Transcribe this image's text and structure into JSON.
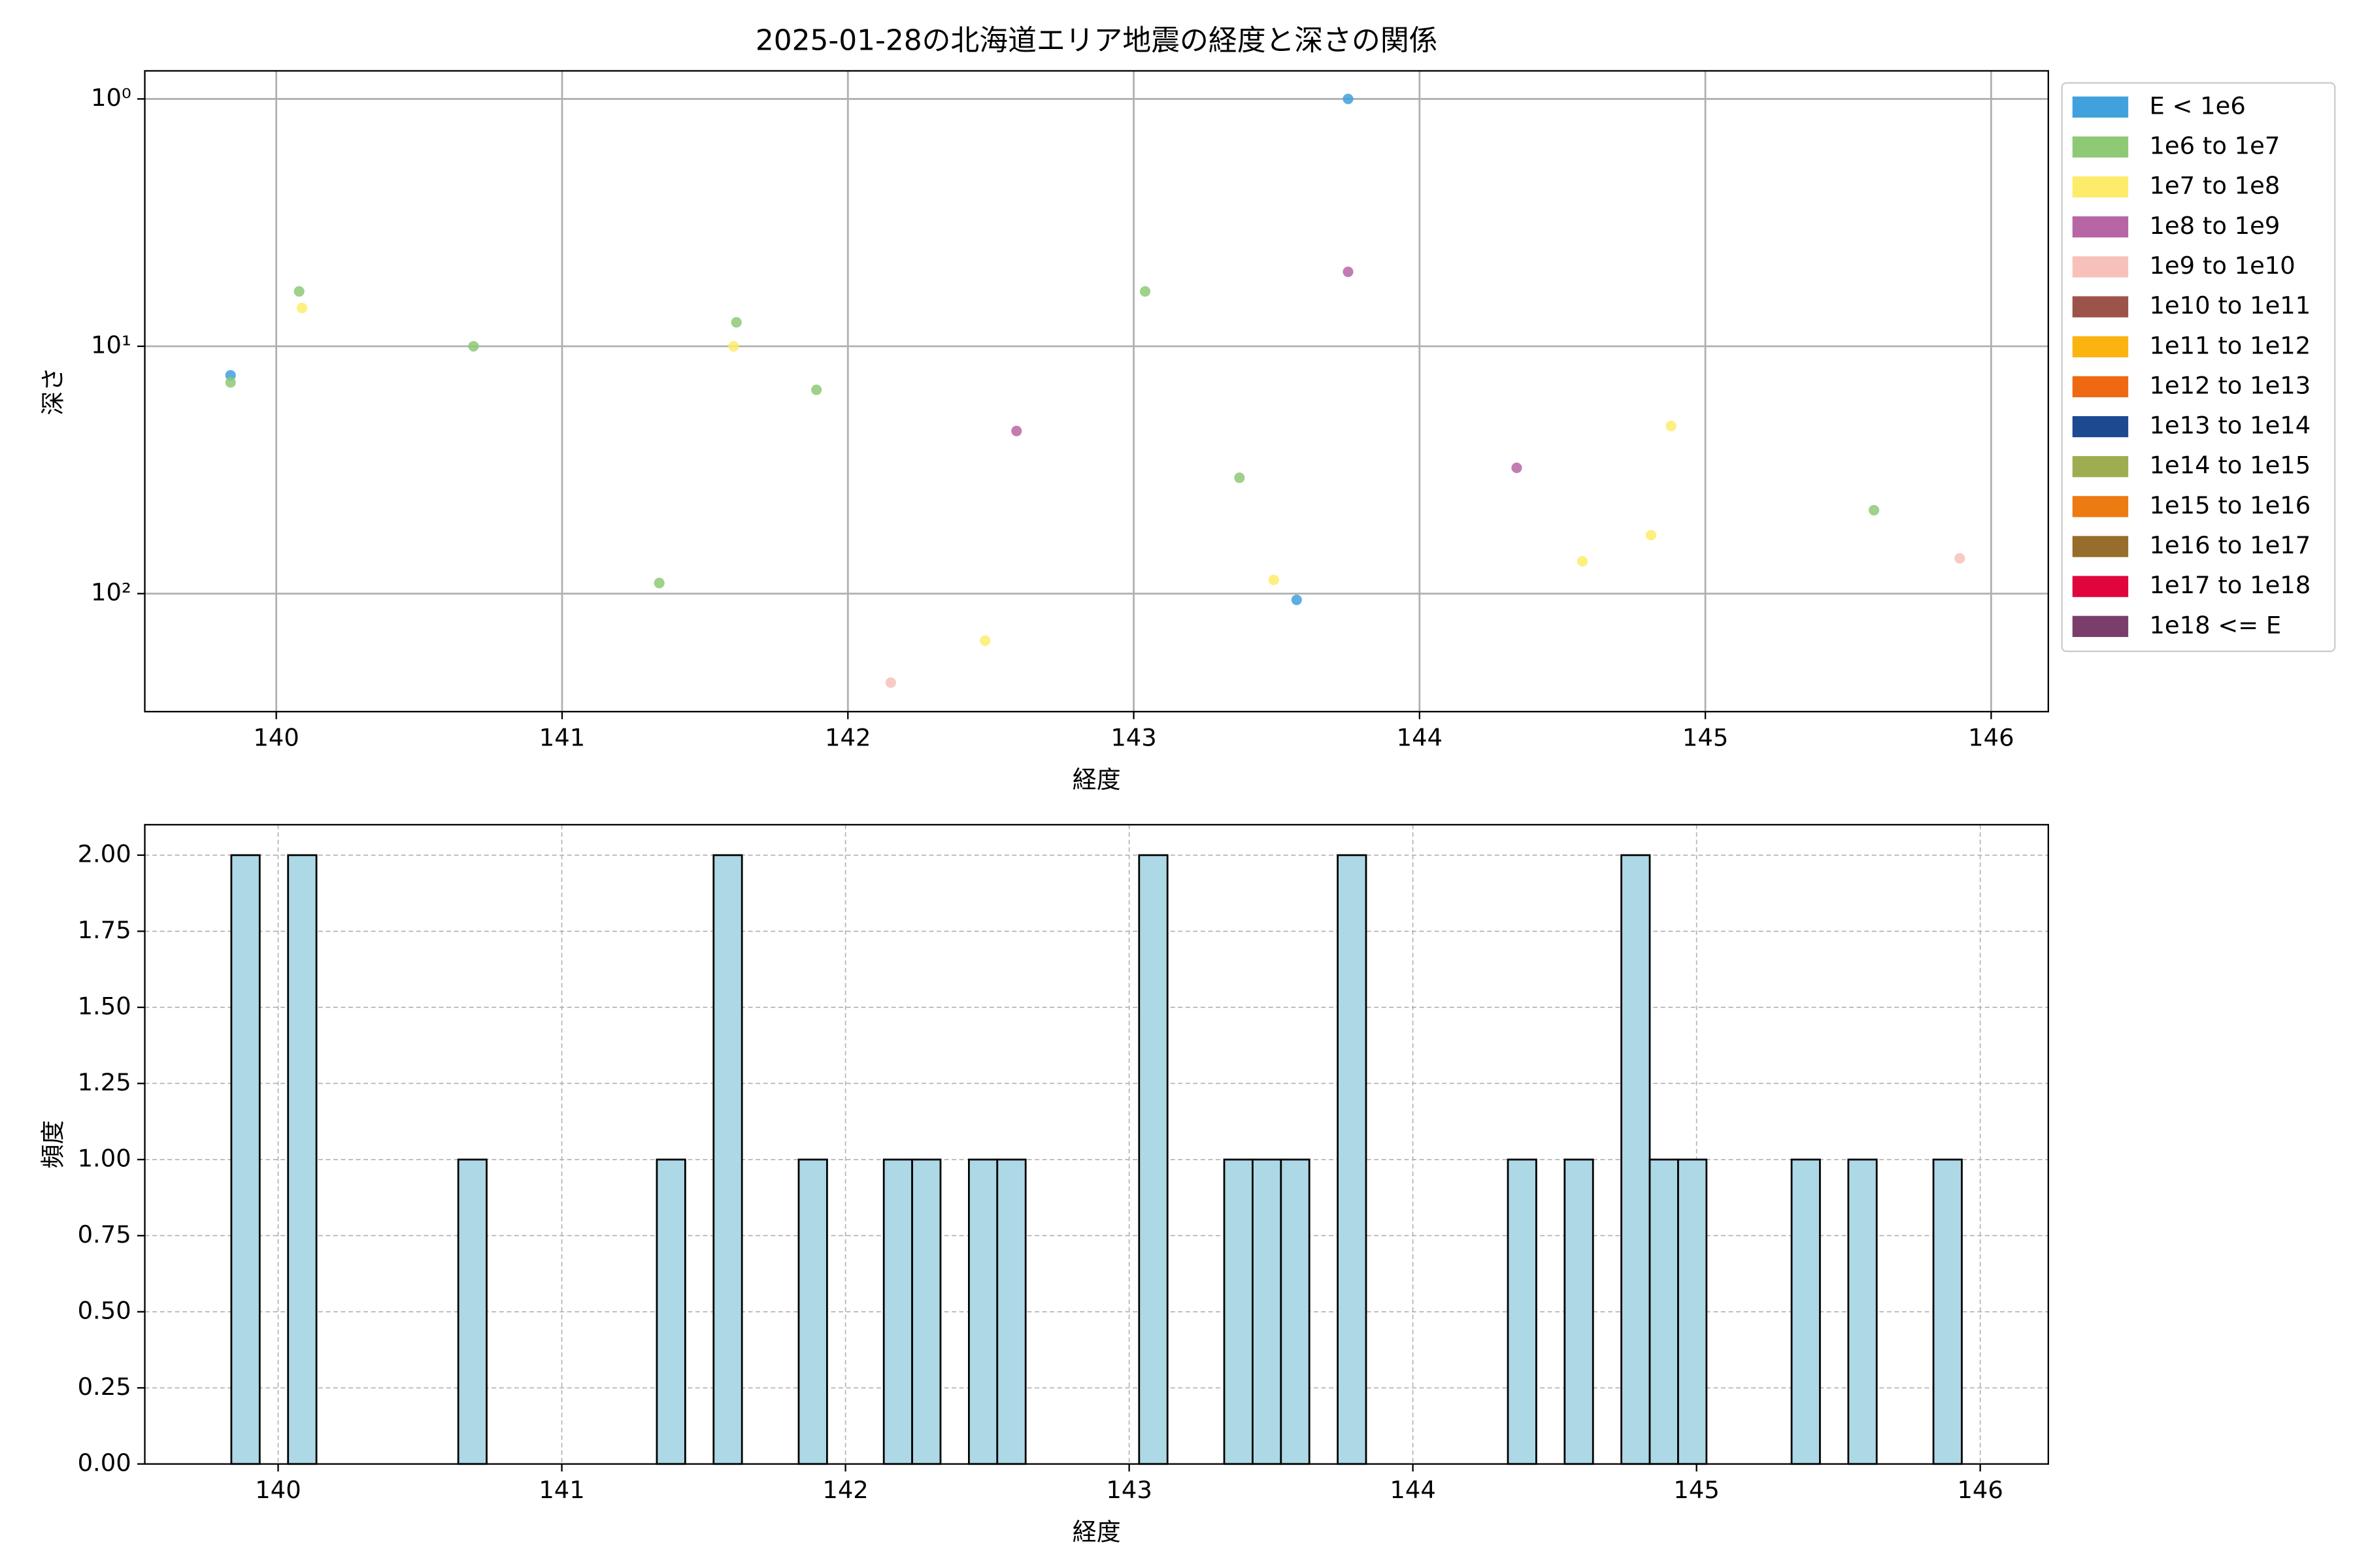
{
  "chart_data": [
    {
      "type": "scatter",
      "title": "2025-01-28の北海道エリア地震の経度と深さの関係",
      "x_label": "経度",
      "y_label": "深さ",
      "xlim": [
        139.54,
        146.2
      ],
      "xticks": [
        140,
        141,
        142,
        143,
        144,
        145,
        146
      ],
      "ylim": [
        0.77,
        300
      ],
      "y_log": true,
      "y_inverted": true,
      "yticks": [
        {
          "value": 1,
          "label": "10⁰"
        },
        {
          "value": 10,
          "label": "10¹"
        },
        {
          "value": 100,
          "label": "10²"
        }
      ],
      "grid": true,
      "legend": "outside right",
      "series": [
        {
          "name": "E < 1e6",
          "color": "#41a1dc",
          "x": [
            139.84,
            143.57,
            143.75
          ],
          "y": [
            13.1,
            106,
            1.0
          ]
        },
        {
          "name": "1e6 to 1e7",
          "color": "#8ec975",
          "x": [
            139.84,
            140.08,
            140.69,
            141.34,
            141.61,
            141.89,
            143.04,
            143.37,
            145.59
          ],
          "y": [
            14.0,
            6.0,
            10.0,
            90.6,
            8.0,
            15.0,
            6.0,
            34,
            46
          ]
        },
        {
          "name": "1e7 to 1e8",
          "color": "#fdec6a",
          "x": [
            140.09,
            141.6,
            142.48,
            143.49,
            144.57,
            144.81,
            144.88
          ],
          "y": [
            7.0,
            10.0,
            155,
            88,
            74,
            58,
            21
          ]
        },
        {
          "name": "1e8 to 1e9",
          "color": "#b865a5",
          "x": [
            142.59,
            143.75,
            144.34
          ],
          "y": [
            22,
            5.0,
            31
          ]
        },
        {
          "name": "1e9 to 1e10",
          "color": "#f7c1ba",
          "x": [
            142.15,
            145.89
          ],
          "y": [
            229,
            72
          ]
        },
        {
          "name": "1e10 to 1e11",
          "color": "#9c5349",
          "x": [],
          "y": []
        },
        {
          "name": "1e11 to 1e12",
          "color": "#fab30f",
          "x": [],
          "y": []
        },
        {
          "name": "1e12 to 1e13",
          "color": "#ef6913",
          "x": [],
          "y": []
        },
        {
          "name": "1e13 to 1e14",
          "color": "#1d4990",
          "x": [],
          "y": []
        },
        {
          "name": "1e14 to 1e15",
          "color": "#9ead4f",
          "x": [],
          "y": []
        },
        {
          "name": "1e15 to 1e16",
          "color": "#ee7a12",
          "x": [],
          "y": []
        },
        {
          "name": "1e16 to 1e17",
          "color": "#976d2b",
          "x": [],
          "y": []
        },
        {
          "name": "1e17 to 1e18",
          "color": "#e1053d",
          "x": [],
          "y": []
        },
        {
          "name": "1e18 <= E",
          "color": "#7b3e6c",
          "x": [],
          "y": []
        }
      ]
    },
    {
      "type": "histogram",
      "x_label": "経度",
      "y_label": "頻度",
      "color": "#add8e6",
      "edge_color": "#000000",
      "xlim": [
        139.53,
        146.24
      ],
      "xticks": [
        140,
        141,
        142,
        143,
        144,
        145,
        146
      ],
      "ylim": [
        0,
        2.1
      ],
      "yticks": [
        {
          "value": 0,
          "label": "0.00"
        },
        {
          "value": 0.25,
          "label": "0.25"
        },
        {
          "value": 0.5,
          "label": "0.50"
        },
        {
          "value": 0.75,
          "label": "0.75"
        },
        {
          "value": 1,
          "label": "1.00"
        },
        {
          "value": 1.25,
          "label": "1.25"
        },
        {
          "value": 1.5,
          "label": "1.50"
        },
        {
          "value": 1.75,
          "label": "1.75"
        },
        {
          "value": 2,
          "label": "2.00"
        }
      ],
      "grid": true,
      "grid_linestyle": "dashed",
      "bins": [
        139.835,
        139.935,
        140.035,
        140.135,
        140.235,
        140.335,
        140.435,
        140.535,
        140.635,
        140.735,
        140.835,
        140.935,
        141.035,
        141.135,
        141.235,
        141.335,
        141.435,
        141.535,
        141.635,
        141.735,
        141.835,
        141.935,
        142.035,
        142.135,
        142.235,
        142.335,
        142.435,
        142.535,
        142.635,
        142.735,
        142.835,
        142.935,
        143.035,
        143.135,
        143.235,
        143.335,
        143.435,
        143.535,
        143.635,
        143.735,
        143.835,
        143.935,
        144.035,
        144.135,
        144.235,
        144.335,
        144.435,
        144.535,
        144.635,
        144.735,
        144.835,
        144.935,
        145.035,
        145.135,
        145.235,
        145.335,
        145.435,
        145.535,
        145.635,
        145.735,
        145.835,
        145.935
      ],
      "values": [
        2,
        0,
        2,
        0,
        0,
        0,
        0,
        0,
        1,
        0,
        0,
        0,
        0,
        0,
        0,
        1,
        0,
        2,
        0,
        0,
        1,
        0,
        0,
        1,
        1,
        0,
        1,
        1,
        0,
        0,
        0,
        0,
        2,
        0,
        0,
        1,
        1,
        1,
        0,
        2,
        0,
        0,
        0,
        0,
        0,
        1,
        0,
        1,
        0,
        2,
        1,
        1,
        0,
        0,
        0,
        1,
        0,
        1,
        0,
        0,
        1
      ]
    }
  ]
}
